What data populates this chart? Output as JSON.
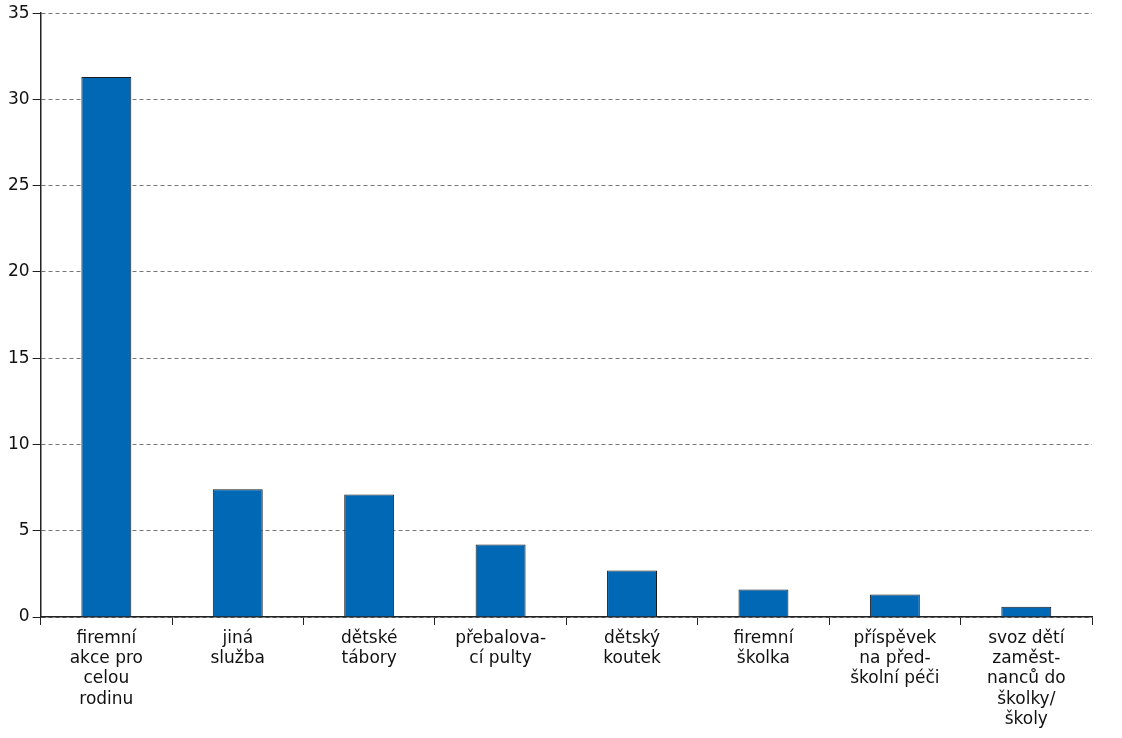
{
  "chart_data": {
    "type": "bar",
    "categories": [
      "firemní\nakce pro\ncelou\nrodinu",
      "jiná\nslužba",
      "dětské\ntábory",
      "přebalova-\ncí pulty",
      "dětský\nkoutek",
      "firemní\nškolka",
      "příspěvek\nna před-\nškolní péči",
      "svoz dětí\nzaměst-\nnanců do\nškolky/\nškoly"
    ],
    "values": [
      31.3,
      7.4,
      7.1,
      4.2,
      2.7,
      1.6,
      1.3,
      0.6
    ],
    "color": "#0068b4",
    "ylim": [
      0,
      35
    ],
    "yticks": [
      0,
      5,
      10,
      15,
      20,
      25,
      30,
      35
    ],
    "grid": "y"
  }
}
